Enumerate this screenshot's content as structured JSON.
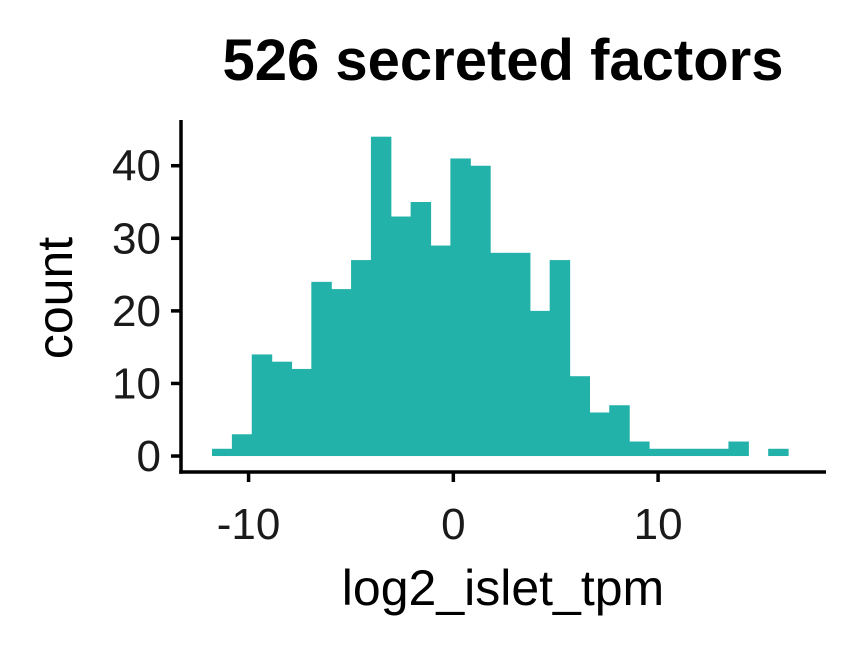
{
  "chart_data": {
    "type": "bar",
    "title": "526 secreted factors",
    "xlabel": "log2_islet_tpm",
    "ylabel": "count",
    "xlim": [
      -13.3,
      18.2
    ],
    "ylim": [
      -2.2,
      46.3
    ],
    "x_ticks": [
      -10,
      0,
      10
    ],
    "y_ticks": [
      0,
      10,
      20,
      30,
      40
    ],
    "bin_width": 0.97,
    "bins": [
      {
        "x": -11.3,
        "count": 1
      },
      {
        "x": -10.33,
        "count": 3
      },
      {
        "x": -9.36,
        "count": 14
      },
      {
        "x": -8.39,
        "count": 13
      },
      {
        "x": -7.42,
        "count": 12
      },
      {
        "x": -6.45,
        "count": 24
      },
      {
        "x": -5.48,
        "count": 23
      },
      {
        "x": -4.51,
        "count": 27
      },
      {
        "x": -3.54,
        "count": 44
      },
      {
        "x": -2.57,
        "count": 33
      },
      {
        "x": -1.6,
        "count": 35
      },
      {
        "x": -0.63,
        "count": 29
      },
      {
        "x": 0.34,
        "count": 41
      },
      {
        "x": 1.31,
        "count": 40
      },
      {
        "x": 2.28,
        "count": 28
      },
      {
        "x": 3.25,
        "count": 28
      },
      {
        "x": 4.22,
        "count": 20
      },
      {
        "x": 5.19,
        "count": 27
      },
      {
        "x": 6.16,
        "count": 11
      },
      {
        "x": 7.13,
        "count": 6
      },
      {
        "x": 8.1,
        "count": 7
      },
      {
        "x": 9.07,
        "count": 2
      },
      {
        "x": 10.04,
        "count": 1
      },
      {
        "x": 11.01,
        "count": 1
      },
      {
        "x": 11.98,
        "count": 1
      },
      {
        "x": 12.95,
        "count": 1
      },
      {
        "x": 13.92,
        "count": 2
      },
      {
        "x": 14.89,
        "count": 0
      },
      {
        "x": 15.86,
        "count": 1
      }
    ],
    "colors": {
      "bar": "#22b2aa",
      "axis": "#000000"
    },
    "grid": false,
    "legend": "none"
  }
}
